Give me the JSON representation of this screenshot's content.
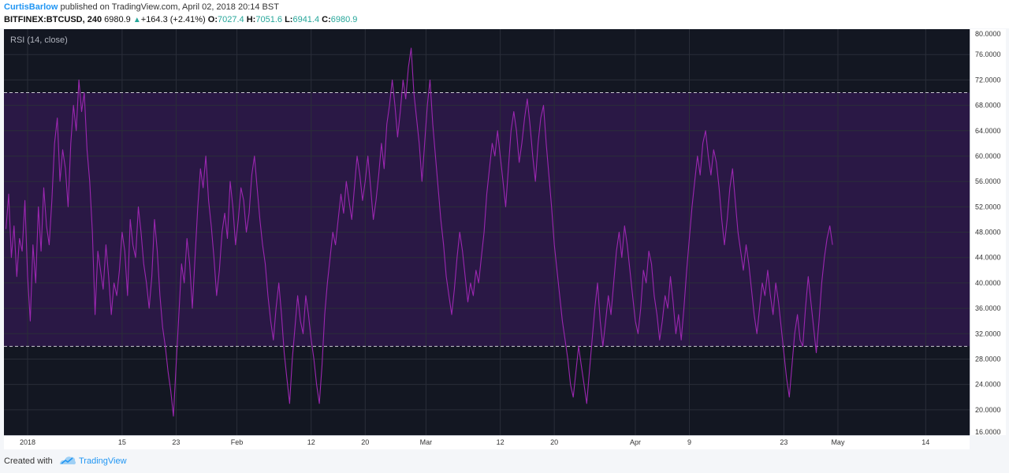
{
  "header": {
    "author": "CurtisBarlow",
    "published_text": "published on TradingView.com, April 02, 2018 20:14 BST",
    "symbol": "BITFINEX:BTCUSD, 240",
    "last": "6980.9",
    "change": "+164.3 (+2.41%)",
    "open_label": "O:",
    "open": "7027.4",
    "high_label": "H:",
    "high": "7051.6",
    "low_label": "L:",
    "low": "6941.4",
    "close_label": "C:",
    "close": "6980.9"
  },
  "indicator": {
    "label": "RSI (14, close)"
  },
  "footer": {
    "created_with": "Created with",
    "brand": "TradingView"
  },
  "colors": {
    "background": "#131722",
    "band_fill": "#2a1845",
    "rsi_line": "#9b27b0",
    "grid": "#2a2e39",
    "dash": "#c8c8d0",
    "up": "#26a69a",
    "brand": "#2196f3"
  },
  "chart_data": {
    "type": "line",
    "ylim": [
      16,
      80
    ],
    "yticks": [
      "16.0000",
      "20.0000",
      "24.0000",
      "28.0000",
      "32.0000",
      "36.0000",
      "40.0000",
      "44.0000",
      "48.0000",
      "52.0000",
      "56.0000",
      "60.0000",
      "64.0000",
      "68.0000",
      "72.0000",
      "76.0000",
      "80.0000"
    ],
    "xticks": [
      {
        "label": "2018",
        "day": 1
      },
      {
        "label": "15",
        "day": 15
      },
      {
        "label": "23",
        "day": 23
      },
      {
        "label": "Feb",
        "day": 32
      },
      {
        "label": "12",
        "day": 43
      },
      {
        "label": "20",
        "day": 51
      },
      {
        "label": "Mar",
        "day": 60
      },
      {
        "label": "12",
        "day": 71
      },
      {
        "label": "20",
        "day": 79
      },
      {
        "label": "Apr",
        "day": 91
      },
      {
        "label": "9",
        "day": 99
      },
      {
        "label": "23",
        "day": 113
      },
      {
        "label": "May",
        "day": 121
      },
      {
        "label": "14",
        "day": 134
      }
    ],
    "xlim": [
      -2.5,
      140.5
    ],
    "bands": [
      30,
      70
    ],
    "series": [
      {
        "values": [
          [
            -2.2,
            48.5
          ],
          [
            -1.8,
            54
          ],
          [
            -1.4,
            44
          ],
          [
            -1.0,
            49
          ],
          [
            -0.6,
            41
          ],
          [
            -0.2,
            47
          ],
          [
            0.2,
            45
          ],
          [
            0.6,
            53
          ],
          [
            1.0,
            41
          ],
          [
            1.4,
            34
          ],
          [
            1.8,
            46
          ],
          [
            2.2,
            40
          ],
          [
            2.6,
            52
          ],
          [
            3.0,
            45
          ],
          [
            3.4,
            55
          ],
          [
            3.8,
            49
          ],
          [
            4.2,
            46
          ],
          [
            4.6,
            53
          ],
          [
            5.0,
            62
          ],
          [
            5.4,
            66
          ],
          [
            5.8,
            56
          ],
          [
            6.2,
            61
          ],
          [
            6.6,
            58
          ],
          [
            7.0,
            52
          ],
          [
            7.4,
            62
          ],
          [
            7.8,
            68
          ],
          [
            8.2,
            64
          ],
          [
            8.6,
            72
          ],
          [
            9.0,
            67
          ],
          [
            9.4,
            70
          ],
          [
            9.8,
            61
          ],
          [
            10.2,
            56
          ],
          [
            10.6,
            48
          ],
          [
            11.0,
            35
          ],
          [
            11.4,
            45
          ],
          [
            11.8,
            42
          ],
          [
            12.2,
            39
          ],
          [
            12.6,
            46
          ],
          [
            13.0,
            41
          ],
          [
            13.4,
            35
          ],
          [
            13.8,
            40
          ],
          [
            14.2,
            38
          ],
          [
            14.6,
            42
          ],
          [
            15.0,
            48
          ],
          [
            15.4,
            45
          ],
          [
            15.8,
            38
          ],
          [
            16.2,
            50
          ],
          [
            16.6,
            46
          ],
          [
            17.0,
            44
          ],
          [
            17.4,
            52
          ],
          [
            17.8,
            48
          ],
          [
            18.2,
            43
          ],
          [
            18.6,
            40
          ],
          [
            19.0,
            36
          ],
          [
            19.4,
            41
          ],
          [
            19.8,
            50
          ],
          [
            20.2,
            45
          ],
          [
            20.6,
            38
          ],
          [
            21.0,
            33
          ],
          [
            21.4,
            30
          ],
          [
            21.8,
            26
          ],
          [
            22.2,
            23
          ],
          [
            22.6,
            19
          ],
          [
            23.0,
            27
          ],
          [
            23.4,
            35
          ],
          [
            23.8,
            43
          ],
          [
            24.2,
            40
          ],
          [
            24.6,
            47
          ],
          [
            25.0,
            43
          ],
          [
            25.4,
            36
          ],
          [
            25.8,
            44
          ],
          [
            26.2,
            52
          ],
          [
            26.6,
            58
          ],
          [
            27.0,
            55
          ],
          [
            27.4,
            60
          ],
          [
            27.8,
            53
          ],
          [
            28.2,
            49
          ],
          [
            28.6,
            44
          ],
          [
            29.0,
            38
          ],
          [
            29.4,
            42
          ],
          [
            29.8,
            48
          ],
          [
            30.2,
            51
          ],
          [
            30.6,
            47
          ],
          [
            31.0,
            56
          ],
          [
            31.4,
            52
          ],
          [
            31.8,
            46
          ],
          [
            32.2,
            50
          ],
          [
            32.6,
            55
          ],
          [
            33.0,
            53
          ],
          [
            33.4,
            48
          ],
          [
            33.8,
            51
          ],
          [
            34.2,
            57
          ],
          [
            34.6,
            60
          ],
          [
            35.0,
            55
          ],
          [
            35.4,
            50
          ],
          [
            35.8,
            46
          ],
          [
            36.2,
            43
          ],
          [
            36.6,
            38
          ],
          [
            37.0,
            34
          ],
          [
            37.4,
            31
          ],
          [
            37.8,
            36
          ],
          [
            38.2,
            40
          ],
          [
            38.6,
            35
          ],
          [
            39.0,
            29
          ],
          [
            39.4,
            25
          ],
          [
            39.8,
            21
          ],
          [
            40.2,
            28
          ],
          [
            40.6,
            33
          ],
          [
            41.0,
            38
          ],
          [
            41.4,
            34
          ],
          [
            41.8,
            32
          ],
          [
            42.2,
            38
          ],
          [
            42.6,
            35
          ],
          [
            43.0,
            31
          ],
          [
            43.4,
            28
          ],
          [
            43.8,
            24
          ],
          [
            44.2,
            21
          ],
          [
            44.6,
            27
          ],
          [
            45.0,
            35
          ],
          [
            45.4,
            40
          ],
          [
            45.8,
            44
          ],
          [
            46.2,
            48
          ],
          [
            46.6,
            46
          ],
          [
            47.0,
            50
          ],
          [
            47.4,
            54
          ],
          [
            47.8,
            51
          ],
          [
            48.2,
            56
          ],
          [
            48.6,
            53
          ],
          [
            49.0,
            50
          ],
          [
            49.4,
            55
          ],
          [
            49.8,
            60
          ],
          [
            50.2,
            57
          ],
          [
            50.6,
            53
          ],
          [
            51.0,
            56
          ],
          [
            51.4,
            60
          ],
          [
            51.8,
            55
          ],
          [
            52.2,
            50
          ],
          [
            52.6,
            53
          ],
          [
            53.0,
            57
          ],
          [
            53.4,
            62
          ],
          [
            53.8,
            58
          ],
          [
            54.2,
            65
          ],
          [
            54.6,
            68
          ],
          [
            55.0,
            72
          ],
          [
            55.4,
            68
          ],
          [
            55.8,
            63
          ],
          [
            56.2,
            67
          ],
          [
            56.6,
            72
          ],
          [
            57.0,
            69
          ],
          [
            57.4,
            74
          ],
          [
            57.8,
            77
          ],
          [
            58.2,
            70
          ],
          [
            58.6,
            66
          ],
          [
            59.0,
            62
          ],
          [
            59.4,
            56
          ],
          [
            59.8,
            62
          ],
          [
            60.2,
            68
          ],
          [
            60.6,
            72
          ],
          [
            61.0,
            65
          ],
          [
            61.4,
            60
          ],
          [
            61.8,
            55
          ],
          [
            62.2,
            50
          ],
          [
            62.6,
            46
          ],
          [
            63.0,
            41
          ],
          [
            63.4,
            38
          ],
          [
            63.8,
            35
          ],
          [
            64.2,
            39
          ],
          [
            64.6,
            44
          ],
          [
            65.0,
            48
          ],
          [
            65.4,
            45
          ],
          [
            65.8,
            41
          ],
          [
            66.2,
            37
          ],
          [
            66.6,
            40
          ],
          [
            67.0,
            38
          ],
          [
            67.4,
            42
          ],
          [
            67.8,
            40
          ],
          [
            68.2,
            44
          ],
          [
            68.6,
            48
          ],
          [
            69.0,
            54
          ],
          [
            69.4,
            58
          ],
          [
            69.8,
            62
          ],
          [
            70.2,
            60
          ],
          [
            70.6,
            64
          ],
          [
            71.0,
            60
          ],
          [
            71.4,
            56
          ],
          [
            71.8,
            52
          ],
          [
            72.2,
            58
          ],
          [
            72.6,
            64
          ],
          [
            73.0,
            67
          ],
          [
            73.4,
            64
          ],
          [
            73.8,
            59
          ],
          [
            74.2,
            62
          ],
          [
            74.6,
            66
          ],
          [
            75.0,
            69
          ],
          [
            75.4,
            65
          ],
          [
            75.8,
            60
          ],
          [
            76.2,
            56
          ],
          [
            76.6,
            62
          ],
          [
            77.0,
            66
          ],
          [
            77.4,
            68
          ],
          [
            77.8,
            62
          ],
          [
            78.2,
            57
          ],
          [
            78.6,
            52
          ],
          [
            79.0,
            46
          ],
          [
            79.4,
            42
          ],
          [
            79.8,
            38
          ],
          [
            80.2,
            34
          ],
          [
            80.6,
            31
          ],
          [
            81.0,
            28
          ],
          [
            81.4,
            24
          ],
          [
            81.8,
            22
          ],
          [
            82.2,
            26
          ],
          [
            82.6,
            30
          ],
          [
            83.0,
            27
          ],
          [
            83.4,
            24
          ],
          [
            83.8,
            21
          ],
          [
            84.2,
            26
          ],
          [
            84.6,
            31
          ],
          [
            85.0,
            36
          ],
          [
            85.4,
            40
          ],
          [
            85.8,
            34
          ],
          [
            86.2,
            30
          ],
          [
            86.6,
            34
          ],
          [
            87.0,
            38
          ],
          [
            87.4,
            35
          ],
          [
            87.8,
            40
          ],
          [
            88.2,
            45
          ],
          [
            88.6,
            48
          ],
          [
            89.0,
            44
          ],
          [
            89.4,
            49
          ],
          [
            89.8,
            46
          ],
          [
            90.2,
            42
          ],
          [
            90.6,
            38
          ],
          [
            91.0,
            34
          ],
          [
            91.4,
            32
          ],
          [
            91.8,
            36
          ],
          [
            92.2,
            42
          ],
          [
            92.6,
            40
          ],
          [
            93.0,
            45
          ],
          [
            93.4,
            43
          ],
          [
            93.8,
            38
          ],
          [
            94.2,
            35
          ],
          [
            94.6,
            31
          ],
          [
            95.0,
            34
          ],
          [
            95.4,
            38
          ],
          [
            95.8,
            36
          ],
          [
            96.2,
            41
          ],
          [
            96.6,
            37
          ],
          [
            97.0,
            32
          ],
          [
            97.4,
            35
          ],
          [
            97.8,
            31
          ],
          [
            98.2,
            36
          ],
          [
            98.6,
            42
          ],
          [
            99.0,
            47
          ],
          [
            99.4,
            52
          ],
          [
            99.8,
            56
          ],
          [
            100.2,
            60
          ],
          [
            100.6,
            57
          ],
          [
            101.0,
            62
          ],
          [
            101.4,
            64
          ],
          [
            101.8,
            60
          ],
          [
            102.2,
            57
          ],
          [
            102.6,
            61
          ],
          [
            103.0,
            59
          ],
          [
            103.4,
            55
          ],
          [
            103.8,
            50
          ],
          [
            104.2,
            46
          ],
          [
            104.6,
            50
          ],
          [
            105.0,
            55
          ],
          [
            105.4,
            58
          ],
          [
            105.8,
            53
          ],
          [
            106.2,
            48
          ],
          [
            106.6,
            45
          ],
          [
            107.0,
            42
          ],
          [
            107.4,
            46
          ],
          [
            107.8,
            43
          ],
          [
            108.2,
            39
          ],
          [
            108.6,
            35
          ],
          [
            109.0,
            32
          ],
          [
            109.4,
            36
          ],
          [
            109.8,
            40
          ],
          [
            110.2,
            38
          ],
          [
            110.6,
            42
          ],
          [
            111.0,
            38
          ],
          [
            111.4,
            35
          ],
          [
            111.8,
            40
          ],
          [
            112.2,
            37
          ],
          [
            112.6,
            33
          ],
          [
            113.0,
            29
          ],
          [
            113.4,
            25
          ],
          [
            113.8,
            22
          ],
          [
            114.2,
            27
          ],
          [
            114.6,
            32
          ],
          [
            115.0,
            35
          ],
          [
            115.4,
            31
          ],
          [
            115.8,
            30
          ],
          [
            116.2,
            36
          ],
          [
            116.6,
            41
          ],
          [
            117.0,
            37
          ],
          [
            117.4,
            33
          ],
          [
            117.8,
            29
          ],
          [
            118.2,
            34
          ],
          [
            118.6,
            40
          ],
          [
            119.0,
            44
          ],
          [
            119.4,
            47
          ],
          [
            119.8,
            49
          ],
          [
            120.2,
            46
          ]
        ]
      }
    ]
  }
}
